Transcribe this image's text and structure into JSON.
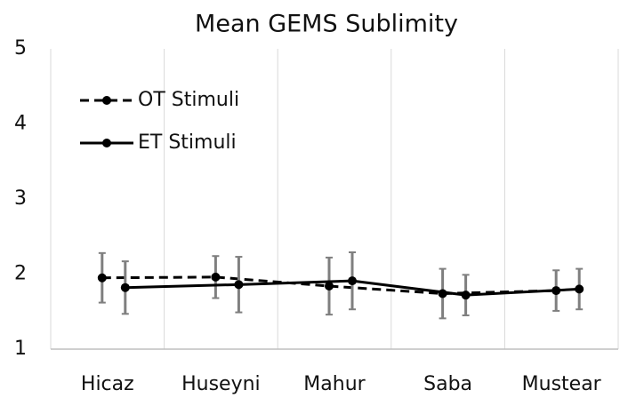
{
  "chart_data": {
    "type": "line",
    "title": "Mean GEMS Sublimity",
    "categories": [
      "Hicaz",
      "Huseyni",
      "Mahur",
      "Saba",
      "Mustear"
    ],
    "series": [
      {
        "name": "OT Stimuli",
        "color": "#000000",
        "dash": true,
        "values": [
          1.95,
          1.96,
          1.84,
          1.74,
          1.78
        ],
        "errors": [
          0.33,
          0.28,
          0.38,
          0.33,
          0.27
        ]
      },
      {
        "name": "ET Stimuli",
        "color": "#000000",
        "dash": false,
        "values": [
          1.82,
          1.86,
          1.91,
          1.72,
          1.8
        ],
        "errors": [
          0.35,
          0.37,
          0.38,
          0.27,
          0.27
        ]
      }
    ],
    "ylim": [
      1,
      5
    ],
    "yticks": [
      1,
      2,
      3,
      4,
      5
    ],
    "grid": false,
    "legend": "top-left"
  }
}
